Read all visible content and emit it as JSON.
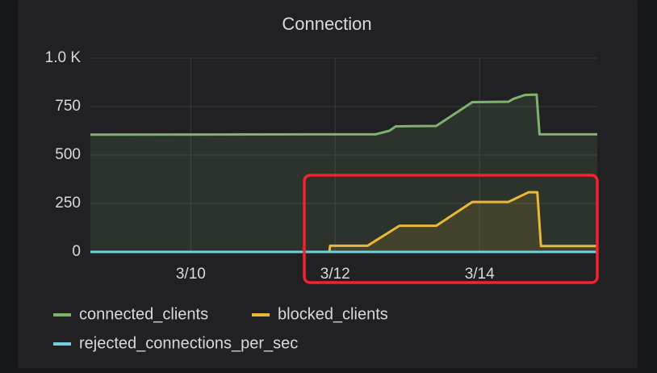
{
  "chart_data": {
    "type": "line",
    "title": "Connection",
    "xlim": [
      8.61,
      15.63
    ],
    "xticks": [
      {
        "value": 10,
        "label": "3/10"
      },
      {
        "value": 12,
        "label": "3/12"
      },
      {
        "value": 14,
        "label": "3/14"
      }
    ],
    "ylim": [
      0,
      1000
    ],
    "yticks": [
      0,
      250,
      500,
      750,
      {
        "value": 1000,
        "label": "1.0 K"
      }
    ],
    "grid": true,
    "series": [
      {
        "name": "connected_clients",
        "color": "#7eb26d",
        "x": [
          8.61,
          12.56,
          12.75,
          12.84,
          13.4,
          13.9,
          14.4,
          14.47,
          14.63,
          14.79,
          14.83,
          15.63
        ],
        "values": [
          605,
          607,
          625,
          648,
          650,
          773,
          775,
          790,
          810,
          812,
          607,
          607
        ]
      },
      {
        "name": "blocked_clients",
        "color": "#eab839",
        "x": [
          8.61,
          11.92,
          11.93,
          12.45,
          12.89,
          13.4,
          13.9,
          14.4,
          14.68,
          14.8,
          14.85,
          15.63
        ],
        "values": [
          0,
          0,
          32,
          32,
          135,
          135,
          258,
          258,
          308,
          308,
          30,
          30
        ]
      },
      {
        "name": "rejected_connections_per_sec",
        "color": "#6ed0e0",
        "x": [
          8.61,
          15.63
        ],
        "values": [
          0,
          0
        ]
      }
    ]
  }
}
